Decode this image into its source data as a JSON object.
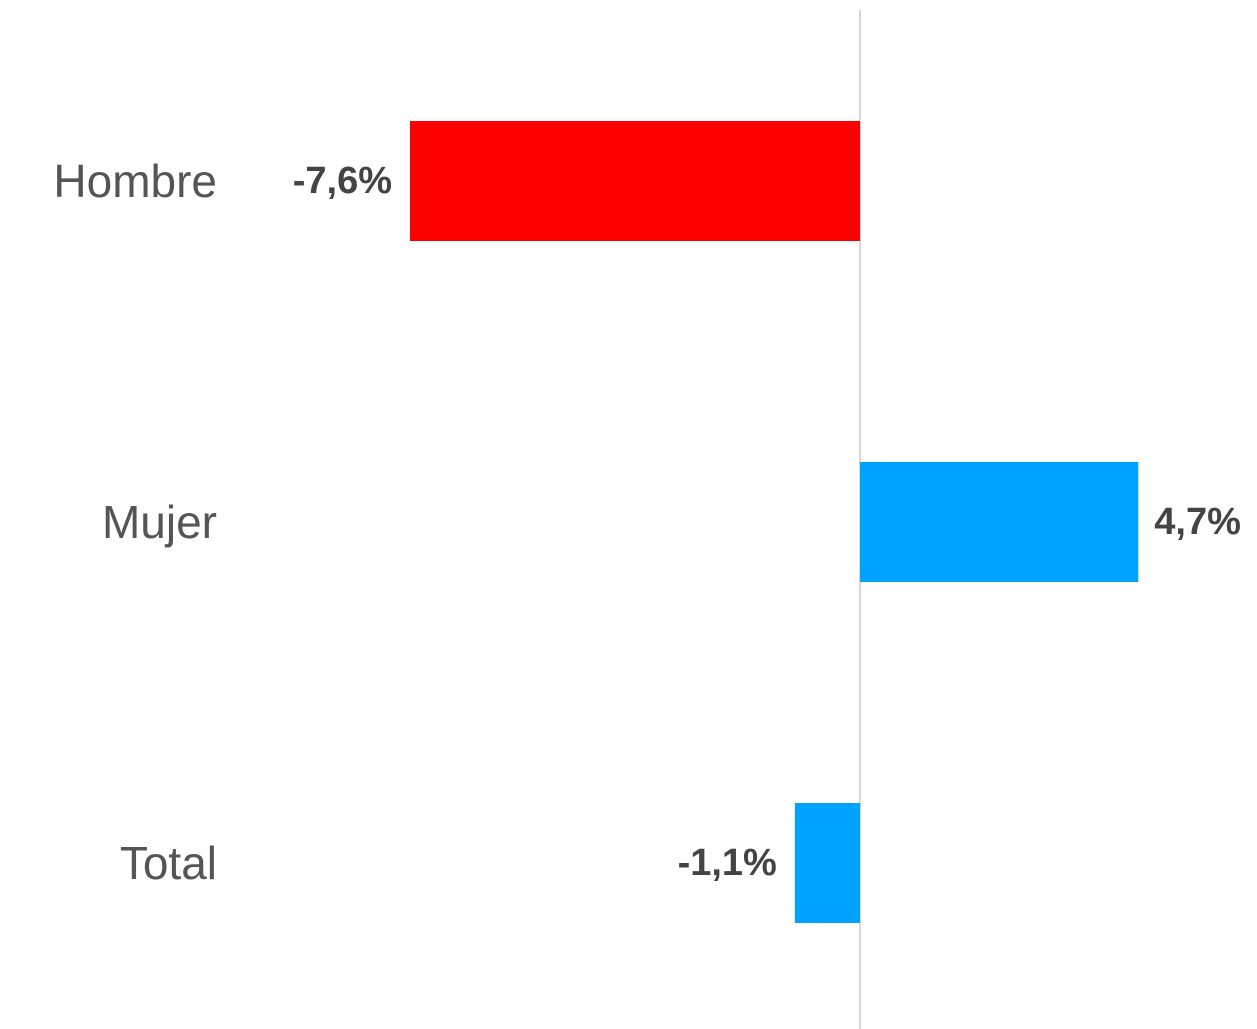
{
  "chart_data": {
    "type": "bar",
    "orientation": "horizontal",
    "categories": [
      "Hombre",
      "Mujer",
      "Total"
    ],
    "values": [
      -7.6,
      4.7,
      -1.1
    ],
    "value_labels": [
      "-7,6%",
      "4,7%",
      "-1,1%"
    ],
    "colors": [
      "#ff0000",
      "#00a2ff",
      "#00a2ff"
    ]
  }
}
